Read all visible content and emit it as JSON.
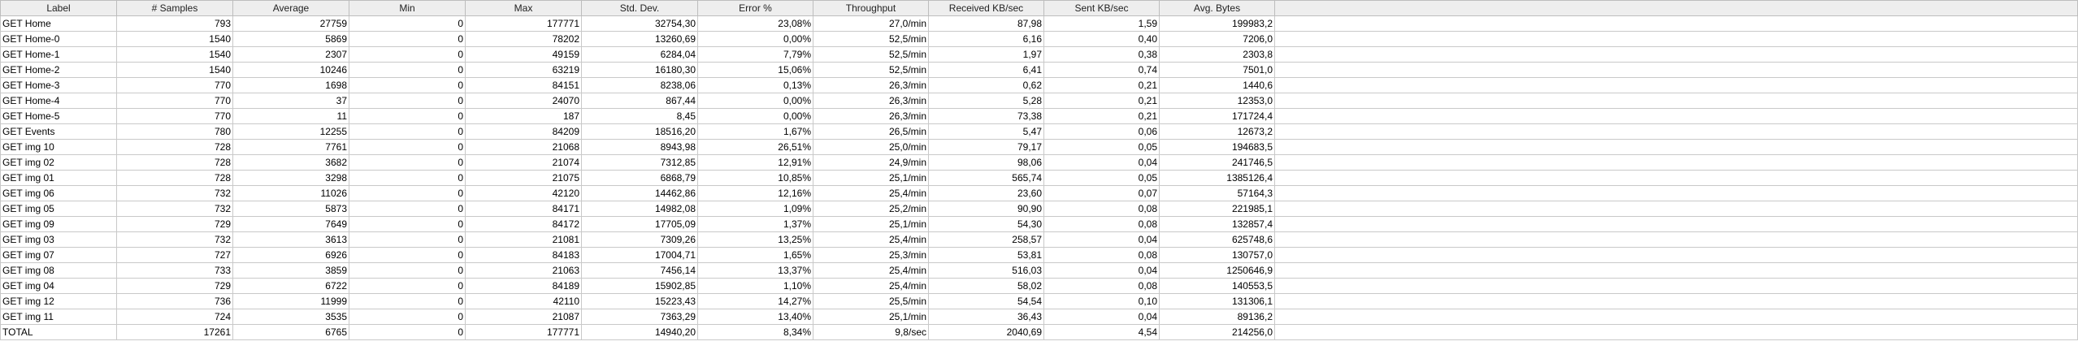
{
  "columns": [
    "Label",
    "# Samples",
    "Average",
    "Min",
    "Max",
    "Std. Dev.",
    "Error %",
    "Throughput",
    "Received KB/sec",
    "Sent KB/sec",
    "Avg. Bytes"
  ],
  "rows": [
    [
      "GET Home",
      "793",
      "27759",
      "0",
      "177771",
      "32754,30",
      "23,08%",
      "27,0/min",
      "87,98",
      "1,59",
      "199983,2"
    ],
    [
      "GET Home-0",
      "1540",
      "5869",
      "0",
      "78202",
      "13260,69",
      "0,00%",
      "52,5/min",
      "6,16",
      "0,40",
      "7206,0"
    ],
    [
      "GET Home-1",
      "1540",
      "2307",
      "0",
      "49159",
      "6284,04",
      "7,79%",
      "52,5/min",
      "1,97",
      "0,38",
      "2303,8"
    ],
    [
      "GET Home-2",
      "1540",
      "10246",
      "0",
      "63219",
      "16180,30",
      "15,06%",
      "52,5/min",
      "6,41",
      "0,74",
      "7501,0"
    ],
    [
      "GET Home-3",
      "770",
      "1698",
      "0",
      "84151",
      "8238,06",
      "0,13%",
      "26,3/min",
      "0,62",
      "0,21",
      "1440,6"
    ],
    [
      "GET Home-4",
      "770",
      "37",
      "0",
      "24070",
      "867,44",
      "0,00%",
      "26,3/min",
      "5,28",
      "0,21",
      "12353,0"
    ],
    [
      "GET Home-5",
      "770",
      "11",
      "0",
      "187",
      "8,45",
      "0,00%",
      "26,3/min",
      "73,38",
      "0,21",
      "171724,4"
    ],
    [
      "GET Events",
      "780",
      "12255",
      "0",
      "84209",
      "18516,20",
      "1,67%",
      "26,5/min",
      "5,47",
      "0,06",
      "12673,2"
    ],
    [
      "GET img 10",
      "728",
      "7761",
      "0",
      "21068",
      "8943,98",
      "26,51%",
      "25,0/min",
      "79,17",
      "0,05",
      "194683,5"
    ],
    [
      "GET img 02",
      "728",
      "3682",
      "0",
      "21074",
      "7312,85",
      "12,91%",
      "24,9/min",
      "98,06",
      "0,04",
      "241746,5"
    ],
    [
      "GET img 01",
      "728",
      "3298",
      "0",
      "21075",
      "6868,79",
      "10,85%",
      "25,1/min",
      "565,74",
      "0,05",
      "1385126,4"
    ],
    [
      "GET img 06",
      "732",
      "11026",
      "0",
      "42120",
      "14462,86",
      "12,16%",
      "25,4/min",
      "23,60",
      "0,07",
      "57164,3"
    ],
    [
      "GET img 05",
      "732",
      "5873",
      "0",
      "84171",
      "14982,08",
      "1,09%",
      "25,2/min",
      "90,90",
      "0,08",
      "221985,1"
    ],
    [
      "GET img 09",
      "729",
      "7649",
      "0",
      "84172",
      "17705,09",
      "1,37%",
      "25,1/min",
      "54,30",
      "0,08",
      "132857,4"
    ],
    [
      "GET img 03",
      "732",
      "3613",
      "0",
      "21081",
      "7309,26",
      "13,25%",
      "25,4/min",
      "258,57",
      "0,04",
      "625748,6"
    ],
    [
      "GET img 07",
      "727",
      "6926",
      "0",
      "84183",
      "17004,71",
      "1,65%",
      "25,3/min",
      "53,81",
      "0,08",
      "130757,0"
    ],
    [
      "GET img 08",
      "733",
      "3859",
      "0",
      "21063",
      "7456,14",
      "13,37%",
      "25,4/min",
      "516,03",
      "0,04",
      "1250646,9"
    ],
    [
      "GET img 04",
      "729",
      "6722",
      "0",
      "84189",
      "15902,85",
      "1,10%",
      "25,4/min",
      "58,02",
      "0,08",
      "140553,5"
    ],
    [
      "GET img 12",
      "736",
      "11999",
      "0",
      "42110",
      "15223,43",
      "14,27%",
      "25,5/min",
      "54,54",
      "0,10",
      "131306,1"
    ],
    [
      "GET img 11",
      "724",
      "3535",
      "0",
      "21087",
      "7363,29",
      "13,40%",
      "25,1/min",
      "36,43",
      "0,04",
      "89136,2"
    ],
    [
      "TOTAL",
      "17261",
      "6765",
      "0",
      "177771",
      "14940,20",
      "8,34%",
      "9,8/sec",
      "2040,69",
      "4,54",
      "214256,0"
    ]
  ]
}
